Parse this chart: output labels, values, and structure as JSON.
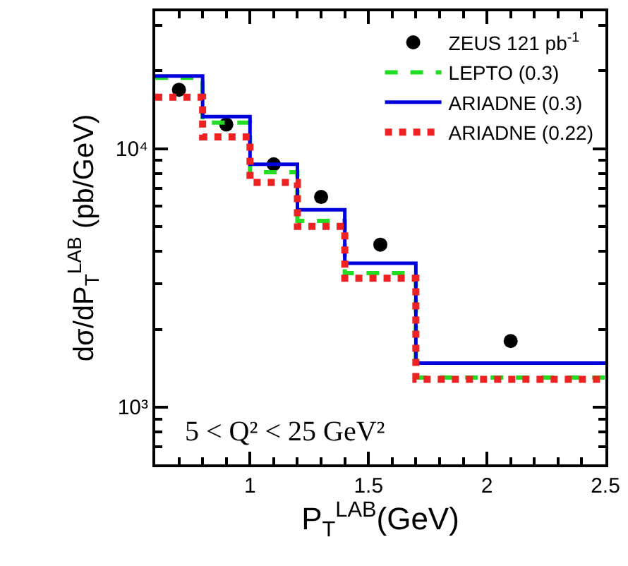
{
  "chart_data": {
    "type": "step",
    "xlabel": "P$_{T}$$^{LAB}$(GeV)",
    "ylabel": "dσ/dP$_{T}$$^{LAB}$ (pb/GeV)",
    "log": "y",
    "grid": false,
    "legend": "top right",
    "xlim": [
      0.6,
      2.5
    ],
    "xticks": [
      1,
      1.5,
      2,
      2.5
    ],
    "ylim": [
      600,
      34000
    ],
    "yticks": [
      {
        "value": 1000,
        "label": "10³"
      },
      {
        "value": 10000,
        "label": "10⁴"
      }
    ],
    "annotations": [
      "5 < Q² < 25 GeV²"
    ],
    "series": [
      {
        "name": "ZEUS 121 pb$^{-1}$",
        "type": "scatter",
        "marker": "circle",
        "color": "#000000",
        "x": [
          0.7,
          0.9,
          1.1,
          1.3,
          1.55,
          2.1
        ],
        "values": [
          16900,
          12400,
          8700,
          6500,
          4250,
          1800
        ]
      },
      {
        "name": "LEPTO (0.3)",
        "line_style": "dashed",
        "color": "#22dd22",
        "x": [
          0.6,
          0.8,
          1.0,
          1.2,
          1.4,
          1.7,
          2.5
        ],
        "values": [
          18800,
          12600,
          8100,
          5250,
          3300,
          1300,
          1300
        ]
      },
      {
        "name": "ARIADNE (0.3)",
        "line_style": "solid",
        "color": "#0000dd",
        "x": [
          0.6,
          0.8,
          1.0,
          1.2,
          1.4,
          1.7,
          2.5
        ],
        "values": [
          19100,
          13300,
          8700,
          5800,
          3600,
          1480,
          1480
        ]
      },
      {
        "name": "ARIADNE (0.22)",
        "line_style": "dotted",
        "color": "#ee2222",
        "x": [
          0.6,
          0.8,
          1.0,
          1.2,
          1.4,
          1.7,
          2.5
        ],
        "values": [
          15800,
          11100,
          7400,
          5000,
          3150,
          1280,
          1280
        ]
      }
    ]
  }
}
